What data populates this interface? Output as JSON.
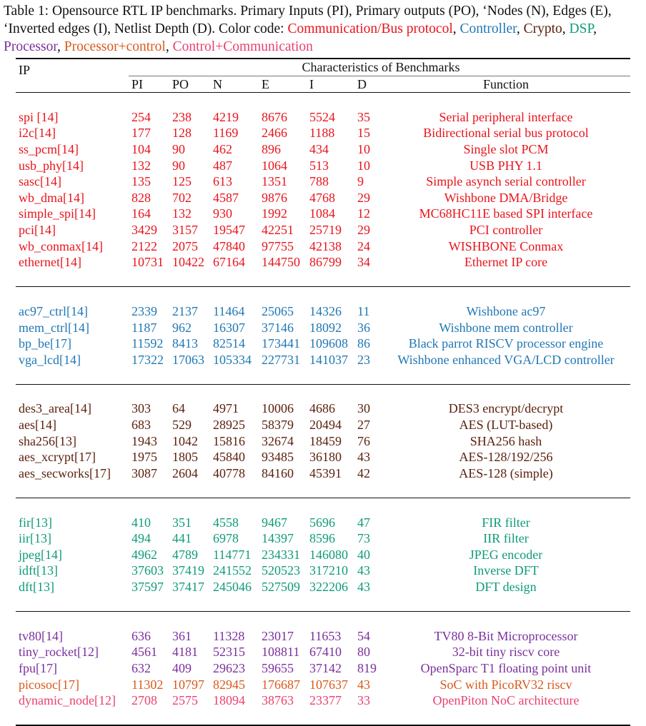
{
  "caption": {
    "text": "Table 1: Opensource RTL IP benchmarks. Primary Inputs (PI), Primary outputs (PO), ‘Nodes (N), Edges (E), ‘Inverted edges (I), Netlist Depth (D). Color code: ",
    "legend": [
      {
        "label": "Communication/Bus protocol",
        "color": "#e8141c",
        "sep": ", "
      },
      {
        "label": "Controller",
        "color": "#1f77b4",
        "sep": ", "
      },
      {
        "label": "Crypto",
        "color": "#5a1e0a",
        "sep": ", "
      },
      {
        "label": "DSP",
        "color": "#0f9b7a",
        "sep": ", "
      },
      {
        "label": "Processor",
        "color": "#7b2f9c",
        "sep": ", "
      },
      {
        "label": "Processor+control",
        "color": "#d9591b",
        "sep": ", "
      },
      {
        "label": "Control+Communication",
        "color": "#e8416f",
        "sep": ""
      }
    ]
  },
  "table": {
    "ip_header": "IP",
    "group_header": "Characteristics of Benchmarks",
    "columns": [
      "PI",
      "PO",
      "N",
      "E",
      "I",
      "D",
      "Function"
    ],
    "groups": [
      {
        "rows": [
          {
            "ip": "spi [14]",
            "pi": "254",
            "po": "238",
            "n": "4219",
            "e": "8676",
            "i": "5524",
            "d": "35",
            "fn": "Serial peripheral interface",
            "color": "#e8141c"
          },
          {
            "ip": "i2c[14]",
            "pi": "177",
            "po": "128",
            "n": "1169",
            "e": "2466",
            "i": "1188",
            "d": "15",
            "fn": "Bidirectional serial bus protocol",
            "color": "#e8141c"
          },
          {
            "ip": "ss_pcm[14]",
            "pi": "104",
            "po": "90",
            "n": "462",
            "e": "896",
            "i": "434",
            "d": "10",
            "fn": "Single slot PCM",
            "color": "#e8141c"
          },
          {
            "ip": "usb_phy[14]",
            "pi": "132",
            "po": "90",
            "n": "487",
            "e": "1064",
            "i": "513",
            "d": "10",
            "fn": "USB PHY 1.1",
            "color": "#e8141c"
          },
          {
            "ip": "sasc[14]",
            "pi": "135",
            "po": "125",
            "n": "613",
            "e": "1351",
            "i": "788",
            "d": "9",
            "fn": "Simple asynch serial controller",
            "color": "#e8141c"
          },
          {
            "ip": "wb_dma[14]",
            "pi": "828",
            "po": "702",
            "n": "4587",
            "e": "9876",
            "i": "4768",
            "d": "29",
            "fn": "Wishbone DMA/Bridge",
            "color": "#e8141c"
          },
          {
            "ip": "simple_spi[14]",
            "pi": "164",
            "po": "132",
            "n": "930",
            "e": "1992",
            "i": "1084",
            "d": "12",
            "fn": "MC68HC11E based SPI interface",
            "color": "#e8141c"
          },
          {
            "ip": "pci[14]",
            "pi": "3429",
            "po": "3157",
            "n": "19547",
            "e": "42251",
            "i": "25719",
            "d": "29",
            "fn": "PCI controller",
            "color": "#e8141c"
          },
          {
            "ip": "wb_conmax[14]",
            "pi": "2122",
            "po": "2075",
            "n": "47840",
            "e": "97755",
            "i": "42138",
            "d": "24",
            "fn": "WISHBONE Conmax",
            "color": "#e8141c"
          },
          {
            "ip": "ethernet[14]",
            "pi": "10731",
            "po": "10422",
            "n": "67164",
            "e": "144750",
            "i": "86799",
            "d": "34",
            "fn": "Ethernet IP core",
            "color": "#e8141c"
          }
        ]
      },
      {
        "rows": [
          {
            "ip": "ac97_ctrl[14]",
            "pi": "2339",
            "po": "2137",
            "n": "11464",
            "e": "25065",
            "i": "14326",
            "d": "11",
            "fn": "Wishbone ac97",
            "color": "#1f77b4"
          },
          {
            "ip": "mem_ctrl[14]",
            "pi": "1187",
            "po": "962",
            "n": "16307",
            "e": "37146",
            "i": "18092",
            "d": "36",
            "fn": "Wishbone mem controller",
            "color": "#1f77b4"
          },
          {
            "ip": "bp_be[17]",
            "pi": "11592",
            "po": "8413",
            "n": "82514",
            "e": "173441",
            "i": "109608",
            "d": "86",
            "fn": "Black parrot RISCV processor engine",
            "color": "#1f77b4"
          },
          {
            "ip": "vga_lcd[14]",
            "pi": "17322",
            "po": "17063",
            "n": "105334",
            "e": "227731",
            "i": "141037",
            "d": "23",
            "fn": "Wishbone enhanced VGA/LCD controller",
            "color": "#1f77b4"
          }
        ]
      },
      {
        "rows": [
          {
            "ip": "des3_area[14]",
            "pi": "303",
            "po": "64",
            "n": "4971",
            "e": "10006",
            "i": "4686",
            "d": "30",
            "fn": "DES3 encrypt/decrypt",
            "color": "#5a1e0a"
          },
          {
            "ip": "aes[14]",
            "pi": "683",
            "po": "529",
            "n": "28925",
            "e": "58379",
            "i": "20494",
            "d": "27",
            "fn": "AES (LUT-based)",
            "color": "#5a1e0a"
          },
          {
            "ip": "sha256[13]",
            "pi": "1943",
            "po": "1042",
            "n": "15816",
            "e": "32674",
            "i": "18459",
            "d": "76",
            "fn": "SHA256 hash",
            "color": "#5a1e0a"
          },
          {
            "ip": "aes_xcrypt[17]",
            "pi": "1975",
            "po": "1805",
            "n": "45840",
            "e": "93485",
            "i": "36180",
            "d": "43",
            "fn": "AES-128/192/256",
            "color": "#5a1e0a"
          },
          {
            "ip": "aes_secworks[17]",
            "pi": "3087",
            "po": "2604",
            "n": "40778",
            "e": "84160",
            "i": "45391",
            "d": "42",
            "fn": "AES-128 (simple)",
            "color": "#5a1e0a"
          }
        ]
      },
      {
        "rows": [
          {
            "ip": "fir[13]",
            "pi": "410",
            "po": "351",
            "n": "4558",
            "e": "9467",
            "i": "5696",
            "d": "47",
            "fn": "FIR filter",
            "color": "#0f9b7a"
          },
          {
            "ip": "iir[13]",
            "pi": "494",
            "po": "441",
            "n": "6978",
            "e": "14397",
            "i": "8596",
            "d": "73",
            "fn": "IIR filter",
            "color": "#0f9b7a"
          },
          {
            "ip": "jpeg[14]",
            "pi": "4962",
            "po": "4789",
            "n": "114771",
            "e": "234331",
            "i": "146080",
            "d": "40",
            "fn": "JPEG encoder",
            "color": "#0f9b7a"
          },
          {
            "ip": "idft[13]",
            "pi": "37603",
            "po": "37419",
            "n": "241552",
            "e": "520523",
            "i": "317210",
            "d": "43",
            "fn": "Inverse DFT",
            "color": "#0f9b7a"
          },
          {
            "ip": "dft[13]",
            "pi": "37597",
            "po": "37417",
            "n": "245046",
            "e": "527509",
            "i": "322206",
            "d": "43",
            "fn": "DFT design",
            "color": "#0f9b7a"
          }
        ]
      },
      {
        "rows": [
          {
            "ip": "tv80[14]",
            "pi": "636",
            "po": "361",
            "n": "11328",
            "e": "23017",
            "i": "11653",
            "d": "54",
            "fn": "TV80 8-Bit Microprocessor",
            "color": "#7b2f9c"
          },
          {
            "ip": "tiny_rocket[12]",
            "pi": "4561",
            "po": "4181",
            "n": "52315",
            "e": "108811",
            "i": "67410",
            "d": "80",
            "fn": "32-bit tiny riscv core",
            "color": "#7b2f9c"
          },
          {
            "ip": "fpu[17]",
            "pi": "632",
            "po": "409",
            "n": "29623",
            "e": "59655",
            "i": "37142",
            "d": "819",
            "fn": "OpenSparc T1 floating point unit",
            "color": "#7b2f9c"
          },
          {
            "ip": "picosoc[17]",
            "pi": "11302",
            "po": "10797",
            "n": "82945",
            "e": "176687",
            "i": "107637",
            "d": "43",
            "fn": "SoC with PicoRV32 riscv",
            "color": "#d9591b"
          },
          {
            "ip": "dynamic_node[12]",
            "pi": "2708",
            "po": "2575",
            "n": "18094",
            "e": "38763",
            "i": "23377",
            "d": "33",
            "fn": "OpenPiton NoC architecture",
            "color": "#e8416f"
          }
        ]
      }
    ]
  }
}
